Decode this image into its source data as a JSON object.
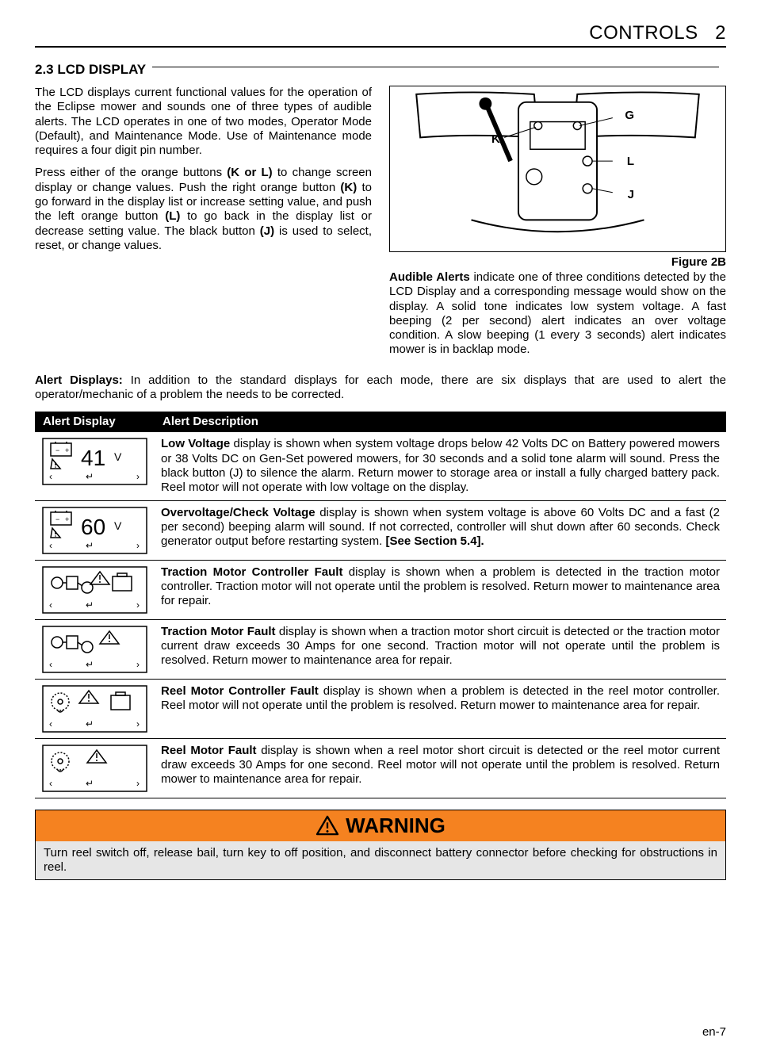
{
  "header": {
    "section": "CONTROLS",
    "num": "2"
  },
  "title": "2.3   LCD DISPLAY",
  "left_paras": [
    "The LCD displays current functional values for the operation of the Eclipse mower and sounds one of three types of audible alerts. The LCD operates in one of two modes, Operator Mode (Default), and Maintenance Mode. Use of Maintenance mode requires a four digit pin number.",
    "Press either of the orange buttons (K or L) to change screen display or change values. Push the right orange button (K) to go forward in the display list or increase setting value, and push the left orange button (L) to go back in the display list or decrease setting value. The black button (J) is used to select, reset, or change values."
  ],
  "figure": {
    "caption": "Figure 2B",
    "labels": {
      "K": "K",
      "G": "G",
      "L": "L",
      "J": "J"
    }
  },
  "right_para_lead": "Audible Alerts",
  "right_para": " indicate one of three conditions detected by the LCD Display and a corresponding message would show on the display. A solid tone indicates low system voltage. A fast beeping (2 per second) alert indicates an over voltage condition. A slow beeping (1 every 3 seconds) alert indicates mower is in backlap mode.",
  "full_para_lead": "Alert Displays:",
  "full_para": " In addition to the standard displays for each mode, there are six displays that are used to alert the operator/mechanic of a problem the needs to be corrected.",
  "table": {
    "headers": [
      "Alert Display",
      "Alert Description"
    ],
    "rows": [
      {
        "icon": "41",
        "lead": "Low Voltage",
        "text": " display is shown when system voltage drops below 42 Volts DC on Battery powered mowers or 38 Volts DC on Gen-Set powered mowers, for 30 seconds and a solid tone alarm will sound. Press the black button (J) to silence the alarm. Return mower to storage area or install a fully charged battery pack. Reel motor will not operate with low voltage on the display."
      },
      {
        "icon": "60",
        "lead": "Overvoltage/Check Voltage",
        "text": " display is shown when system voltage is above 60 Volts DC and a fast (2 per second) beeping alarm will sound. If not corrected, controller will shut down after 60 seconds. Check generator output before restarting system. ",
        "tail_bold": "[See Section 5.4]."
      },
      {
        "icon": "tmc",
        "lead": "Traction Motor Controller Fault",
        "text": " display is shown when a problem is detected in the traction motor controller. Traction motor will not operate until the problem is resolved. Return mower to maintenance area for repair."
      },
      {
        "icon": "tm",
        "lead": "Traction Motor Fault",
        "text": " display is shown when a traction motor short circuit is detected or the traction motor current draw exceeds 30 Amps for one second. Traction motor will not operate until the problem is resolved. Return mower to maintenance area for repair."
      },
      {
        "icon": "rmc",
        "lead": "Reel Motor Controller Fault",
        "text": " display is shown when a problem is detected in the reel motor controller. Reel motor will not operate until the problem is resolved. Return mower to maintenance area for repair."
      },
      {
        "icon": "rm",
        "lead": "Reel Motor Fault",
        "text": " display is shown when a reel motor short circuit is detected or the reel motor current draw exceeds 30 Amps for one second. Reel motor will not operate until the problem is resolved. Return mower to maintenance area for repair."
      }
    ]
  },
  "warning": {
    "title": "WARNING",
    "text": "Turn reel switch off, release bail, turn key to off position, and disconnect battery connector before checking for obstructions in reel."
  },
  "page_num": "en-7",
  "colors": {
    "warning_bg": "#f58220",
    "warning_body_bg": "#e6e6e6"
  }
}
